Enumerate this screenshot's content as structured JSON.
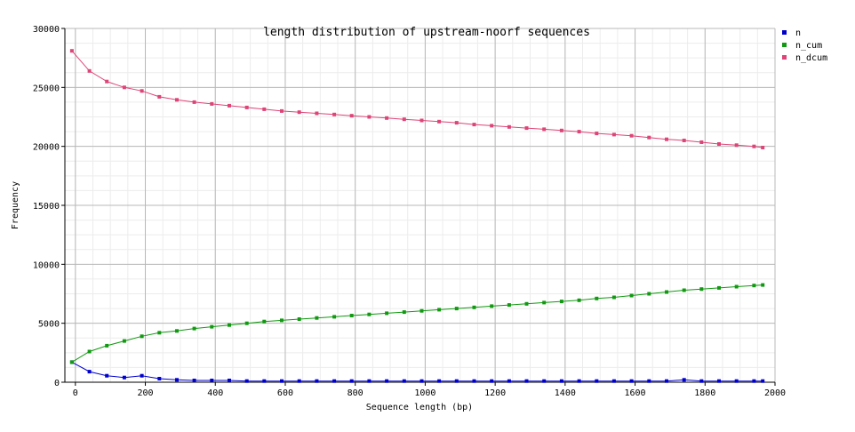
{
  "chart_data": {
    "type": "line",
    "title": "length distribution of upstream-noorf sequences",
    "xlabel": "Sequence length (bp)",
    "ylabel": "Frequency",
    "xlim": [
      -30,
      2000
    ],
    "ylim": [
      0,
      30000
    ],
    "grid": true,
    "legend_position": "right",
    "x_ticks": [
      0,
      200,
      400,
      600,
      800,
      1000,
      1200,
      1400,
      1600,
      1800,
      2000
    ],
    "y_ticks": [
      0,
      5000,
      10000,
      15000,
      20000,
      25000,
      30000
    ],
    "x_tick_labels": [
      "0",
      "200",
      "400",
      "600",
      "800",
      "1000",
      "1200",
      "1400",
      "1600",
      "1800",
      "2000"
    ],
    "y_tick_labels": [
      "0",
      "5000",
      "10000",
      "15000",
      "20000",
      "25000",
      "30000"
    ],
    "x": [
      -10,
      40,
      90,
      140,
      190,
      240,
      290,
      340,
      390,
      440,
      490,
      540,
      590,
      640,
      690,
      740,
      790,
      840,
      890,
      940,
      990,
      1040,
      1090,
      1140,
      1190,
      1240,
      1290,
      1340,
      1390,
      1440,
      1490,
      1540,
      1590,
      1640,
      1690,
      1740,
      1790,
      1840,
      1890,
      1940,
      1965
    ],
    "series": [
      {
        "name": "n",
        "color": "#0000cc",
        "values": [
          1700,
          900,
          550,
          400,
          550,
          300,
          200,
          150,
          150,
          150,
          100,
          100,
          100,
          100,
          100,
          100,
          100,
          100,
          100,
          100,
          100,
          100,
          100,
          100,
          100,
          100,
          100,
          100,
          100,
          100,
          100,
          100,
          100,
          100,
          100,
          200,
          100,
          100,
          100,
          100,
          100
        ]
      },
      {
        "name": "n_cum",
        "color": "#119911",
        "values": [
          1700,
          2600,
          3100,
          3500,
          3900,
          4200,
          4350,
          4550,
          4700,
          4850,
          5000,
          5150,
          5250,
          5350,
          5450,
          5550,
          5650,
          5750,
          5850,
          5950,
          6050,
          6150,
          6250,
          6350,
          6450,
          6550,
          6650,
          6750,
          6850,
          6950,
          7100,
          7200,
          7350,
          7500,
          7650,
          7800,
          7900,
          8000,
          8100,
          8200,
          8250
        ]
      },
      {
        "name": "n_dcum",
        "color": "#dd4477",
        "values": [
          28100,
          26400,
          25500,
          25000,
          24700,
          24200,
          23950,
          23750,
          23600,
          23450,
          23300,
          23150,
          23000,
          22900,
          22800,
          22700,
          22600,
          22500,
          22400,
          22300,
          22200,
          22100,
          22000,
          21850,
          21750,
          21650,
          21550,
          21450,
          21350,
          21250,
          21100,
          21000,
          20900,
          20750,
          20600,
          20500,
          20350,
          20200,
          20100,
          20000,
          19900
        ]
      }
    ]
  }
}
